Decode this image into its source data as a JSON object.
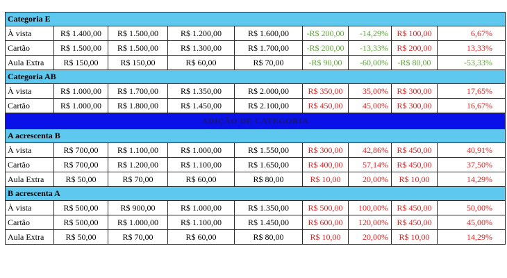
{
  "colors": {
    "section": "#5ec8ee",
    "banner": "#0a10e8",
    "positive": "#5aa832",
    "negative": "#ee1f1f"
  },
  "rows": [
    {
      "type": "section",
      "label": "Categoria E"
    },
    {
      "type": "data",
      "cells": [
        {
          "t": "À vista"
        },
        {
          "t": "R$ 1.400,00"
        },
        {
          "t": "R$ 1.500,00"
        },
        {
          "t": "R$ 1.200,00"
        },
        {
          "t": "R$ 1.600,00"
        },
        {
          "t": "-R$ 200,00",
          "c": "green"
        },
        {
          "t": "-14,29%",
          "c": "green"
        },
        {
          "t": "R$ 100,00",
          "c": "red"
        },
        {
          "t": "6,67%",
          "c": "red"
        }
      ]
    },
    {
      "type": "data",
      "cells": [
        {
          "t": "Cartão"
        },
        {
          "t": "R$ 1.500,00"
        },
        {
          "t": "R$ 1.500,00"
        },
        {
          "t": "R$ 1.300,00"
        },
        {
          "t": "R$ 1.700,00"
        },
        {
          "t": "-R$ 200,00",
          "c": "green"
        },
        {
          "t": "-13,33%",
          "c": "green"
        },
        {
          "t": "R$ 200,00",
          "c": "red"
        },
        {
          "t": "13,33%",
          "c": "red"
        }
      ]
    },
    {
      "type": "data",
      "cells": [
        {
          "t": "Aula Extra"
        },
        {
          "t": "R$ 150,00"
        },
        {
          "t": "R$ 150,00"
        },
        {
          "t": "R$ 60,00"
        },
        {
          "t": "R$ 70,00"
        },
        {
          "t": "-R$ 90,00",
          "c": "green"
        },
        {
          "t": "-60,00%",
          "c": "green"
        },
        {
          "t": "-R$ 80,00",
          "c": "green"
        },
        {
          "t": "-53,33%",
          "c": "green"
        }
      ]
    },
    {
      "type": "section",
      "label": "Categoria AB"
    },
    {
      "type": "data",
      "cells": [
        {
          "t": "À vista"
        },
        {
          "t": "R$ 1.000,00"
        },
        {
          "t": "R$ 1.700,00"
        },
        {
          "t": "R$ 1.350,00"
        },
        {
          "t": "R$ 2.000,00"
        },
        {
          "t": "R$ 350,00",
          "c": "red"
        },
        {
          "t": "35,00%",
          "c": "red"
        },
        {
          "t": "R$ 300,00",
          "c": "red"
        },
        {
          "t": "17,65%",
          "c": "red"
        }
      ]
    },
    {
      "type": "data",
      "cells": [
        {
          "t": "Cartão"
        },
        {
          "t": "R$ 1.000,00"
        },
        {
          "t": "R$ 1.800,00"
        },
        {
          "t": "R$ 1.450,00"
        },
        {
          "t": "R$ 2.100,00"
        },
        {
          "t": "R$ 450,00",
          "c": "red"
        },
        {
          "t": "45,00%",
          "c": "red"
        },
        {
          "t": "R$ 300,00",
          "c": "red"
        },
        {
          "t": "16,67%",
          "c": "red"
        }
      ]
    },
    {
      "type": "banner",
      "label": "ADIÇÃO DE CATEGORIA"
    },
    {
      "type": "section",
      "label": "A acrescenta B"
    },
    {
      "type": "data",
      "cells": [
        {
          "t": "À vista"
        },
        {
          "t": "R$ 700,00"
        },
        {
          "t": "R$ 1.100,00"
        },
        {
          "t": "R$ 1.000,00"
        },
        {
          "t": "R$ 1.550,00"
        },
        {
          "t": "R$ 300,00",
          "c": "red"
        },
        {
          "t": "42,86%",
          "c": "red"
        },
        {
          "t": "R$ 450,00",
          "c": "red"
        },
        {
          "t": "40,91%",
          "c": "red"
        }
      ]
    },
    {
      "type": "data",
      "cells": [
        {
          "t": "Cartão"
        },
        {
          "t": "R$ 700,00"
        },
        {
          "t": "R$ 1.200,00"
        },
        {
          "t": "R$ 1.100,00"
        },
        {
          "t": "R$ 1.650,00"
        },
        {
          "t": "R$ 400,00",
          "c": "red"
        },
        {
          "t": "57,14%",
          "c": "red"
        },
        {
          "t": "R$ 450,00",
          "c": "red"
        },
        {
          "t": "37,50%",
          "c": "red"
        }
      ]
    },
    {
      "type": "data",
      "cells": [
        {
          "t": "Aula Extra"
        },
        {
          "t": "R$ 50,00"
        },
        {
          "t": "R$ 70,00"
        },
        {
          "t": "R$ 60,00"
        },
        {
          "t": "R$ 80,00"
        },
        {
          "t": "R$ 10,00",
          "c": "red"
        },
        {
          "t": "20,00%",
          "c": "red"
        },
        {
          "t": "R$ 10,00",
          "c": "red"
        },
        {
          "t": "14,29%",
          "c": "red"
        }
      ]
    },
    {
      "type": "section",
      "label": "B acrescenta A"
    },
    {
      "type": "data",
      "cells": [
        {
          "t": "À vista"
        },
        {
          "t": "R$ 500,00"
        },
        {
          "t": "R$ 900,00"
        },
        {
          "t": "R$ 1.000,00"
        },
        {
          "t": "R$ 1.350,00"
        },
        {
          "t": "R$ 500,00",
          "c": "red"
        },
        {
          "t": "100,00%",
          "c": "red"
        },
        {
          "t": "R$ 450,00",
          "c": "red"
        },
        {
          "t": "50,00%",
          "c": "red"
        }
      ]
    },
    {
      "type": "data",
      "cells": [
        {
          "t": "Cartão"
        },
        {
          "t": "R$ 500,00"
        },
        {
          "t": "R$ 1.000,00"
        },
        {
          "t": "R$ 1.100,00"
        },
        {
          "t": "R$ 1.450,00"
        },
        {
          "t": "R$ 600,00",
          "c": "red"
        },
        {
          "t": "120,00%",
          "c": "red"
        },
        {
          "t": "R$ 450,00",
          "c": "red"
        },
        {
          "t": "45,00%",
          "c": "red"
        }
      ]
    },
    {
      "type": "data",
      "cells": [
        {
          "t": "Aula Extra"
        },
        {
          "t": "R$ 50,00"
        },
        {
          "t": "R$ 70,00"
        },
        {
          "t": "R$ 60,00"
        },
        {
          "t": "R$ 80,00"
        },
        {
          "t": "R$ 10,00",
          "c": "red"
        },
        {
          "t": "20,00%",
          "c": "red"
        },
        {
          "t": "R$ 10,00",
          "c": "red"
        },
        {
          "t": "14,29%",
          "c": "red"
        }
      ]
    }
  ]
}
